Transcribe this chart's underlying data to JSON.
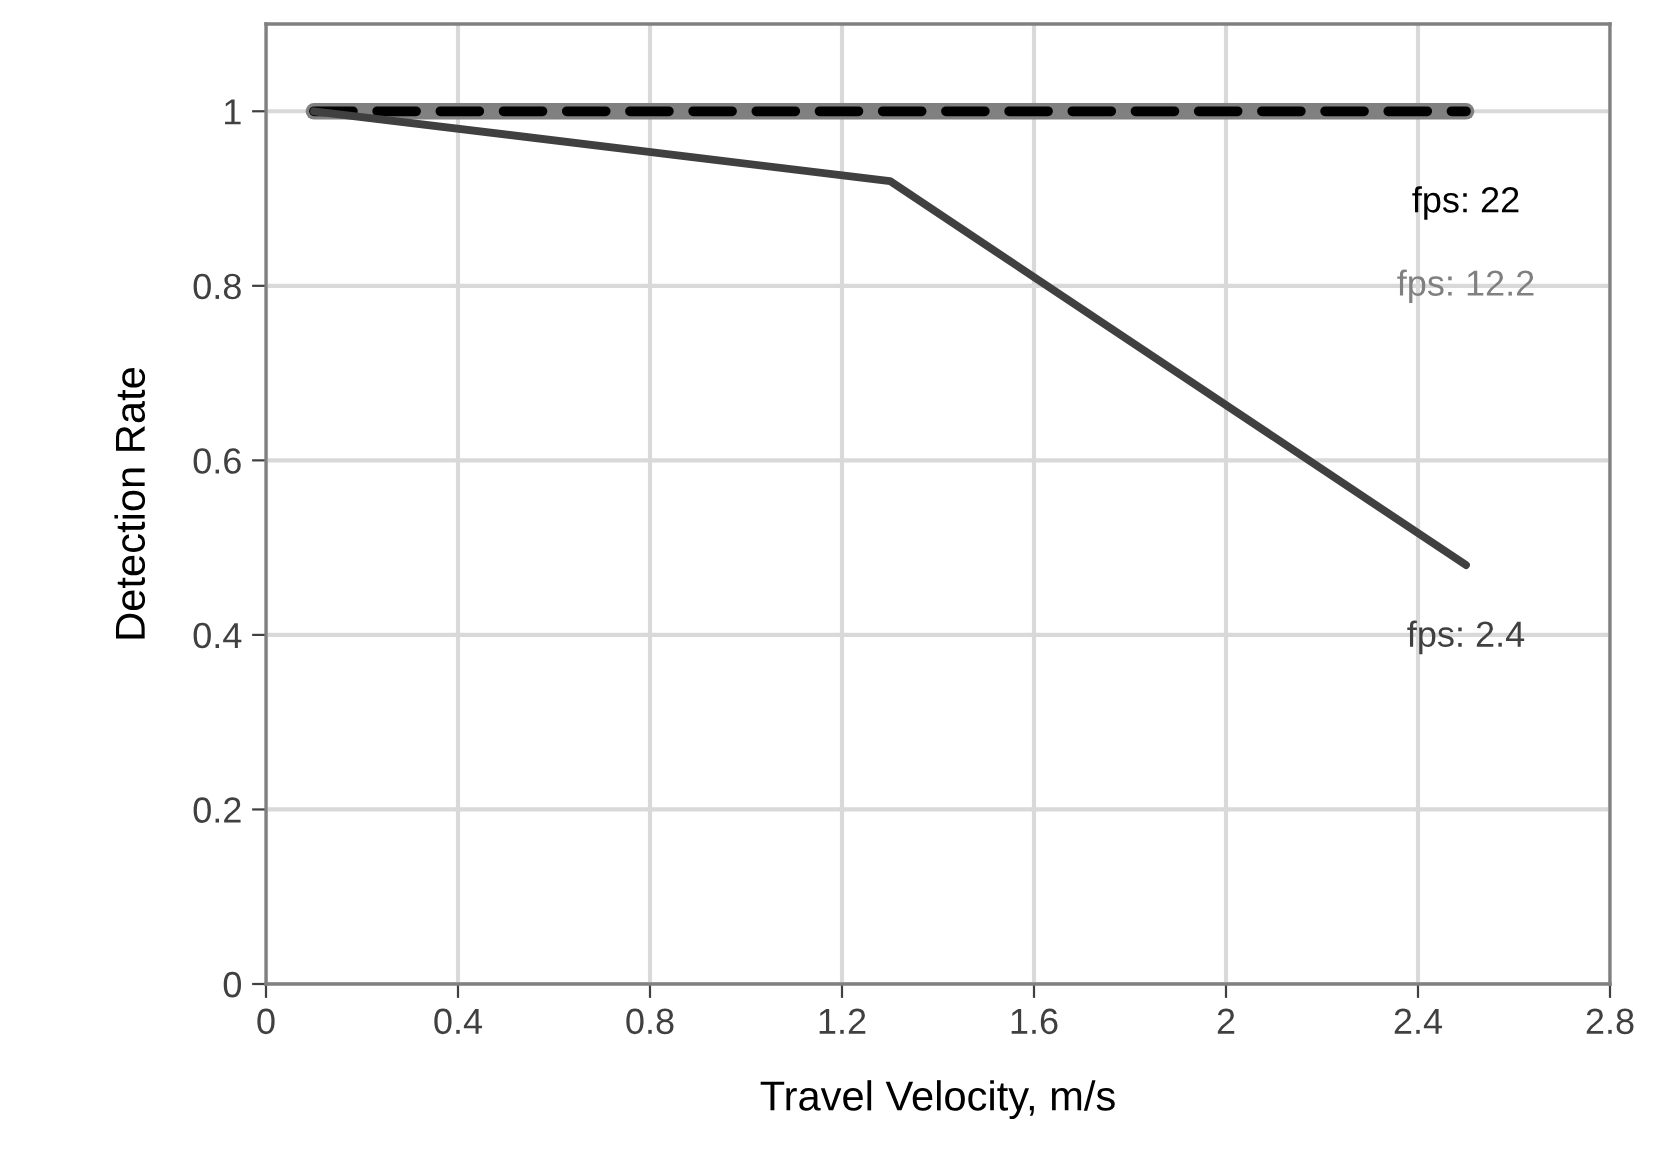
{
  "chart_data": {
    "type": "line",
    "xlabel": "Travel Velocity, m/s",
    "ylabel": "Detection Rate",
    "x": [
      0.1,
      1.3,
      2.5
    ],
    "series": [
      {
        "name": "fps: 12.2",
        "color": "#808080",
        "values": [
          1,
          1,
          1
        ],
        "line_style": "solid"
      },
      {
        "name": "fps: 22",
        "color": "#000000",
        "values": [
          1,
          1,
          1
        ],
        "line_style": "dashed"
      },
      {
        "name": "fps: 2.4",
        "color": "#404040",
        "values": [
          1,
          0.92,
          0.48
        ],
        "line_style": "solid"
      }
    ],
    "xlim": [
      0,
      2.8
    ],
    "xticks": [
      0,
      0.4,
      0.8,
      1.2,
      1.6,
      2,
      2.4,
      2.8
    ],
    "ylim": [
      0,
      1.1
    ],
    "yticks": [
      0,
      0.2,
      0.4,
      0.6,
      0.8,
      1
    ],
    "grid": true,
    "legend": false,
    "marker": "none"
  }
}
